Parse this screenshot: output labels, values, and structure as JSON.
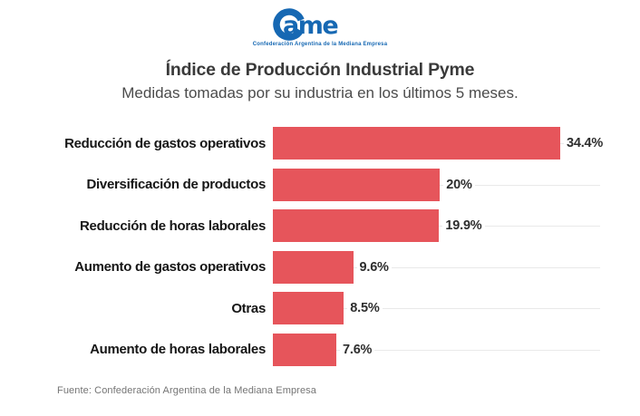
{
  "logo": {
    "text": "Came",
    "text_tail": "ame",
    "tagline": "Confederación Argentina de la Mediana Empresa",
    "color": "#1668b3"
  },
  "header": {
    "title": "Índice de Producción Industrial Pyme",
    "subtitle": "Medidas tomadas por su industria en los últimos 5 meses."
  },
  "chart_data": {
    "type": "bar",
    "orientation": "horizontal",
    "title": "Índice de Producción Industrial Pyme",
    "subtitle": "Medidas tomadas por su industria en los últimos 5 meses.",
    "categories": [
      "Reducción de gastos operativos",
      "Diversificación de productos",
      "Reducción de horas laborales",
      "Aumento de gastos operativos",
      "Otras",
      "Aumento de horas laborales"
    ],
    "values": [
      34.4,
      20,
      19.9,
      9.6,
      8.5,
      7.6
    ],
    "value_labels": [
      "34.4%",
      "20%",
      "19.9%",
      "9.6%",
      "8.5%",
      "7.6%"
    ],
    "xlabel": "",
    "ylabel": "",
    "xlim": [
      0,
      39
    ],
    "grid": true,
    "legend": false,
    "bar_color": "#e6555b",
    "gridline_color": "#e9e9e9",
    "label_color": "#161616",
    "value_color": "#2e2e2e"
  },
  "footer": {
    "source": "Fuente: Confederación Argentina de la Mediana Empresa"
  }
}
